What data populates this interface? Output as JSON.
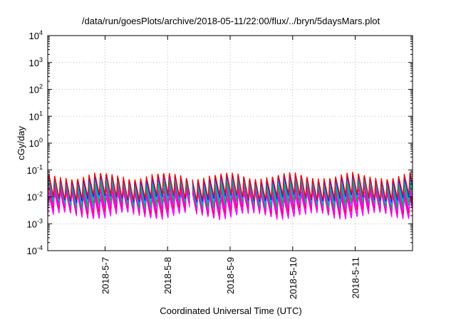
{
  "chart_data": {
    "type": "line",
    "title": "/data/run/goesPlots/archive/2018-05-11/22:00/flux/../bryn/5daysMars.plot",
    "xlabel": "Coordinated Universal Time (UTC)",
    "ylabel": "cGy/day",
    "yscale": "log",
    "ylim": [
      0.0001,
      10000
    ],
    "y_ticks": [
      {
        "mant": "10",
        "exp": "4",
        "value": 10000
      },
      {
        "mant": "10",
        "exp": "3",
        "value": 1000
      },
      {
        "mant": "10",
        "exp": "2",
        "value": 100
      },
      {
        "mant": "10",
        "exp": "1",
        "value": 10
      },
      {
        "mant": "10",
        "exp": "0",
        "value": 1
      },
      {
        "mant": "10",
        "exp": "-1",
        "value": 0.1
      },
      {
        "mant": "10",
        "exp": "-2",
        "value": 0.01
      },
      {
        "mant": "10",
        "exp": "-3",
        "value": 0.001
      },
      {
        "mant": "10",
        "exp": "-4",
        "value": 0.0001
      }
    ],
    "xlim": [
      "2018-05-06T02:00",
      "2018-05-11T22:00"
    ],
    "x_ticks": [
      {
        "label": "2018-5-7",
        "date": "2018-05-07T00:00"
      },
      {
        "label": "2018-5-8",
        "date": "2018-05-08T00:00"
      },
      {
        "label": "2018-5-9",
        "date": "2018-05-09T00:00"
      },
      {
        "label": "2018-5-10",
        "date": "2018-05-10T00:00"
      },
      {
        "label": "2018-5-11",
        "date": "2018-05-11T00:00"
      }
    ],
    "grid": true,
    "legend": "none",
    "series": [
      {
        "color": "#ff00ff",
        "min": 0.0018,
        "max": 0.012
      },
      {
        "color": "#ff00ff",
        "min": 0.0022,
        "max": 0.015
      },
      {
        "color": "#cc2222",
        "min": 0.0028,
        "max": 0.02
      },
      {
        "color": "#ff00ff",
        "min": 0.0034,
        "max": 0.024
      },
      {
        "color": "#00a0a0",
        "min": 0.0045,
        "max": 0.03
      },
      {
        "color": "#22aa22",
        "min": 0.0055,
        "max": 0.036
      },
      {
        "color": "#00aaff",
        "min": 0.0065,
        "max": 0.045
      },
      {
        "color": "#0022ff",
        "min": 0.008,
        "max": 0.055
      },
      {
        "color": "#ff0000",
        "min": 0.0095,
        "max": 0.065
      }
    ]
  }
}
